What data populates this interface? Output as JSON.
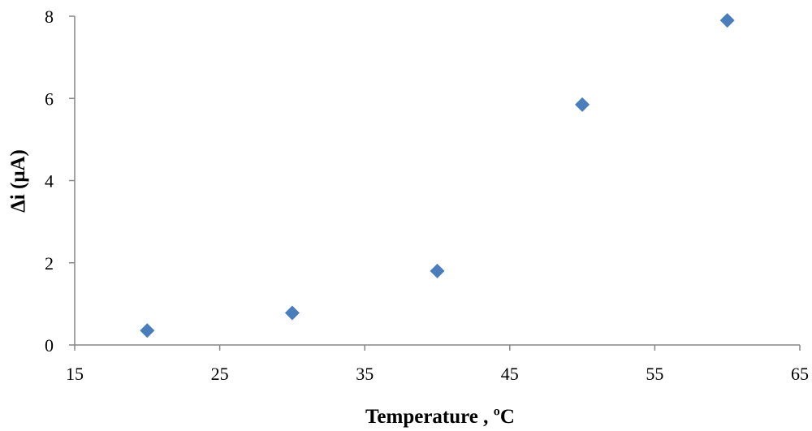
{
  "chart_data": {
    "type": "scatter",
    "title": "",
    "xlabel": "Temperature , ºC",
    "ylabel": "Δi  (μA)",
    "xlim": [
      15,
      65
    ],
    "ylim": [
      0,
      8
    ],
    "xticks": [
      "15",
      "25",
      "35",
      "45",
      "55",
      "65"
    ],
    "yticks": [
      "0",
      "2",
      "4",
      "6",
      "8"
    ],
    "grid": false,
    "legend": "none",
    "marker": "diamond",
    "marker_color": "#4a7ebb",
    "series": [
      {
        "x": [
          20,
          30,
          40,
          50,
          60
        ],
        "y": [
          0.35,
          0.78,
          1.8,
          5.85,
          7.9
        ]
      }
    ]
  }
}
